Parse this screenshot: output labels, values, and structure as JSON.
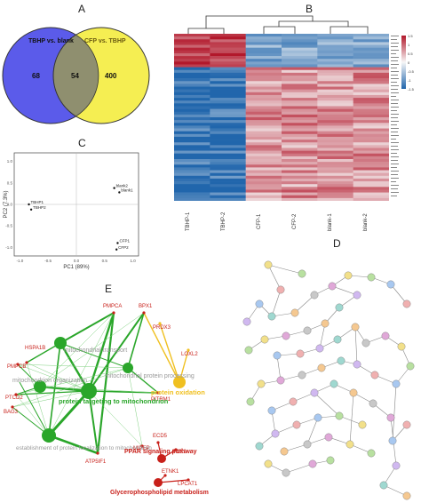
{
  "panels": {
    "a": "A",
    "b": "B",
    "c": "C",
    "d": "D",
    "e": "E"
  },
  "venn": {
    "left_label": "TBHP vs. blank",
    "right_label": "CFP vs. TBHP",
    "left_only": "68",
    "overlap": "54",
    "right_only": "400",
    "colors": {
      "left": "#5b5bea",
      "right": "#f5ee52",
      "overlap": "#8f8f6f"
    }
  },
  "heatmap": {
    "columns": [
      "TBHP-1",
      "TBHP-2",
      "CFP-1",
      "CFP-2",
      "blank-1",
      "blank-2"
    ],
    "legend_ticks": [
      "1.5",
      "1",
      "0.5",
      "0",
      "-0.5",
      "-1",
      "-1.5"
    ],
    "row_label_text": "gene"
  },
  "pca": {
    "x_label": "PC1 (89%)",
    "y_label": "PC2 (7.3%)",
    "points": [
      {
        "label": "blank2",
        "pc1": 0.67,
        "pc2": 0.38
      },
      {
        "label": "blank1",
        "pc1": 0.76,
        "pc2": 0.28
      },
      {
        "label": "TBHP1",
        "pc1": -0.84,
        "pc2": 0.0
      },
      {
        "label": "TBHP2",
        "pc1": -0.8,
        "pc2": -0.12
      },
      {
        "label": "CFP1",
        "pc1": 0.73,
        "pc2": -0.9
      },
      {
        "label": "CFP2",
        "pc1": 0.71,
        "pc2": -1.05
      }
    ],
    "x_ticks": [
      "-1.0",
      "-0.5",
      "0.0",
      "0.5",
      "1.0"
    ],
    "y_ticks": [
      "1.0",
      "0.5",
      "0.0",
      "-0.5",
      "-1.0"
    ]
  },
  "enrichment": {
    "genes": [
      "HSPA1B",
      "PMPCA",
      "BPX1",
      "PRDX3",
      "PMPCB",
      "LOXL2",
      "PTCD2",
      "BAG3",
      "PITRM1",
      "MIPEP",
      "ECD5",
      "PCK2",
      "ATP5IF1",
      "ETNK1",
      "LPCAT1"
    ],
    "terms": [
      "mitochondrial transport",
      "mitochondrion organization",
      "mitochondrial protein processing",
      "protein targeting to mitochondrion",
      "establishment of protein localization to mitochondrion",
      "protein oxidation",
      "PPAR signaling pathway",
      "Glycerophospholipid metabolism"
    ],
    "colors": {
      "mito": "#2aa62a",
      "oxidation": "#f0c020",
      "ppar": "#c8201a"
    }
  }
}
